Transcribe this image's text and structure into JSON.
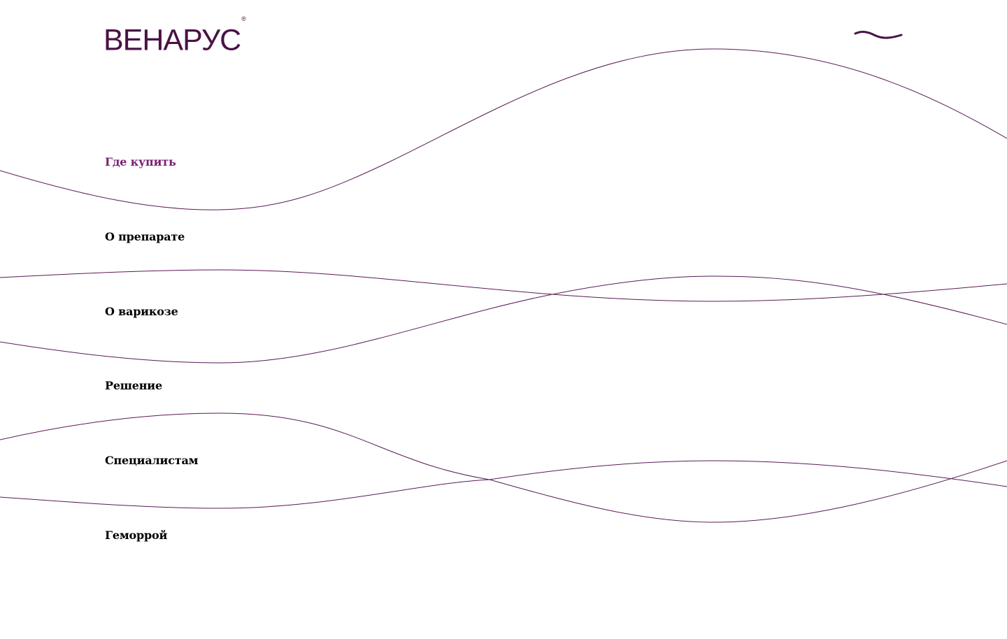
{
  "logo": {
    "text": "ВЕНАРУС",
    "mark": "®"
  },
  "menu_toggle": {
    "icon": "wave-close-icon"
  },
  "nav": {
    "items": [
      {
        "label": "Где купить",
        "active": true
      },
      {
        "label": "О препарате",
        "active": false
      },
      {
        "label": "О варикозе",
        "active": false
      },
      {
        "label": "Решение",
        "active": false
      },
      {
        "label": "Специалистам",
        "active": false
      },
      {
        "label": "Геморрой",
        "active": false
      }
    ]
  },
  "colors": {
    "brand": "#4a1245",
    "active_link": "#7b1f73",
    "link": "#000000",
    "wave_stroke": "#5a1a55",
    "background": "#ffffff"
  }
}
